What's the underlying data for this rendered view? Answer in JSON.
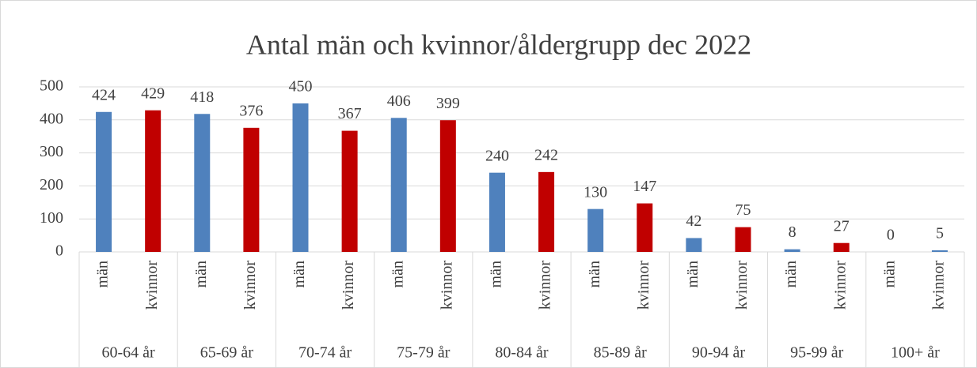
{
  "chart_data": {
    "type": "bar",
    "title": "Antal män och kvinnor/åldergrupp dec 2022",
    "groups": [
      "60-64 år",
      "65-69 år",
      "70-74 år",
      "75-79 år",
      "80-84 år",
      "85-89 år",
      "90-94 år",
      "95-99 år",
      "100+ år"
    ],
    "categories": [
      "män",
      "kvinnor",
      "män",
      "kvinnor",
      "män",
      "kvinnor",
      "män",
      "kvinnor",
      "män",
      "kvinnor",
      "män",
      "kvinnor",
      "män",
      "kvinnor",
      "män",
      "kvinnor",
      "män",
      "kvinnor"
    ],
    "values": [
      424,
      429,
      418,
      376,
      450,
      367,
      406,
      399,
      240,
      242,
      130,
      147,
      42,
      75,
      8,
      27,
      0,
      5
    ],
    "colors": [
      "#4f81bd",
      "#c00000",
      "#4f81bd",
      "#c00000",
      "#4f81bd",
      "#c00000",
      "#4f81bd",
      "#c00000",
      "#4f81bd",
      "#c00000",
      "#4f81bd",
      "#c00000",
      "#4f81bd",
      "#c00000",
      "#4f81bd",
      "#c00000",
      "#4f81bd",
      "#4f81bd"
    ],
    "ylim": [
      0,
      500
    ],
    "yticks": [
      0,
      100,
      200,
      300,
      400,
      500
    ],
    "grid": true
  }
}
